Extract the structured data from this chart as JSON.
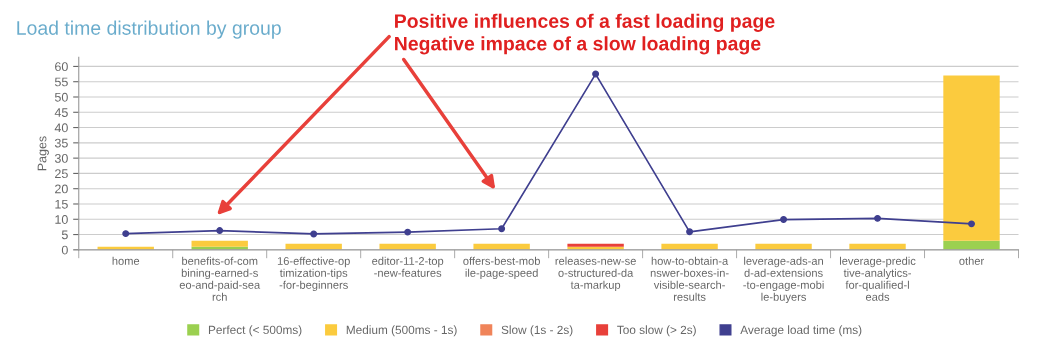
{
  "chart_data": {
    "type": "bar",
    "stacked": true,
    "title": "Load time distribution by group",
    "ylabel": "Pages",
    "categories": [
      "home",
      "benefits-of-combining-earned-seo-and-paid-search",
      "16-effective-optimization-tips-for-beginners",
      "editor-11-2-top-new-features",
      "offers-best-mobile-page-speed",
      "releases-new-seo-structured-data-markup",
      "how-to-obtain-answer-boxes-in-visible-search-results",
      "leverage-ads-and-ad-extensions-to-engage-mobile-buyers",
      "leverage-predictive-analytics-for-qualified-leads",
      "other"
    ],
    "series": [
      {
        "name": "Perfect (< 500ms)",
        "color": "#9bd050",
        "values": [
          0,
          1,
          0,
          0,
          0,
          0,
          0,
          0,
          0,
          3
        ]
      },
      {
        "name": "Medium (500ms - 1s)",
        "color": "#fbcb3e",
        "values": [
          1,
          2,
          2,
          2,
          2,
          1,
          2,
          2,
          2,
          54
        ]
      },
      {
        "name": "Slow (1s - 2s)",
        "color": "#f0845a",
        "values": [
          0,
          0,
          0,
          0,
          0,
          0,
          0,
          0,
          0,
          0
        ]
      },
      {
        "name": "Too slow (> 2s)",
        "color": "#e8403a",
        "values": [
          0,
          0,
          0,
          0,
          0,
          1,
          0,
          0,
          0,
          0
        ]
      },
      {
        "name": "Average load time (ms)",
        "type": "line",
        "marker": "circle",
        "color": "#3f3f8f",
        "values": [
          5.3,
          6.3,
          5.2,
          5.8,
          6.9,
          57.5,
          5.9,
          9.9,
          10.3,
          8.5
        ]
      }
    ],
    "ylim": [
      0,
      63
    ],
    "yticks": [
      0,
      5,
      10,
      15,
      20,
      25,
      30,
      35,
      40,
      45,
      50,
      55,
      60
    ],
    "grid": "y",
    "legend": "bottom",
    "annotations": [
      "Positive influences of a fast loading page",
      "Negative impace of a slow loading page"
    ]
  }
}
